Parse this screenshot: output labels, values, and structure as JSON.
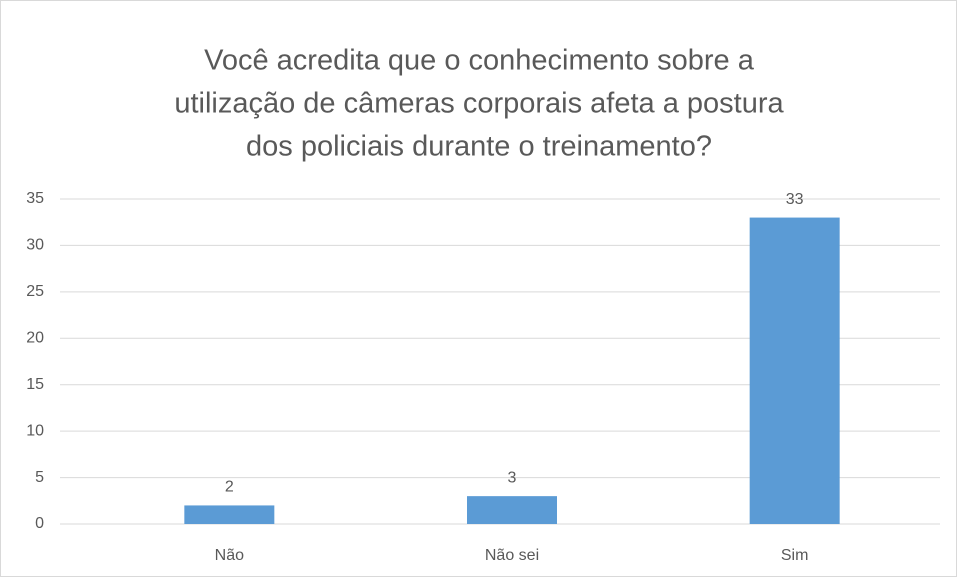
{
  "chart_data": {
    "type": "bar",
    "title": [
      "Você acredita que o conhecimento sobre a",
      "utilização de câmeras corporais afeta a postura",
      "dos policiais durante o treinamento?"
    ],
    "categories": [
      "Não",
      "Não sei",
      "Sim"
    ],
    "values": [
      2,
      3,
      33
    ],
    "color": "#5b9bd5",
    "ylim": [
      0,
      35
    ],
    "yticks": [
      0,
      5,
      10,
      15,
      20,
      25,
      30,
      35
    ],
    "grid": true
  }
}
